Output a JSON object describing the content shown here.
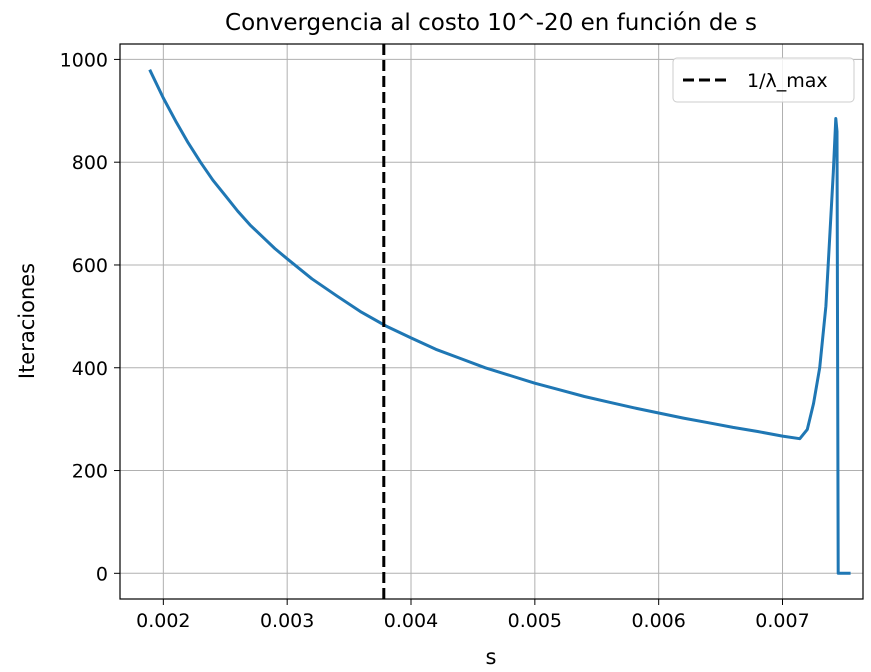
{
  "chart_data": {
    "type": "line",
    "title": "Convergencia al costo 10^-20 en función de s",
    "xlabel": "s",
    "ylabel": "Iteraciones",
    "xlim": [
      0.00165,
      0.00765
    ],
    "ylim": [
      -50,
      1030
    ],
    "xticks": [
      {
        "value": 0.002,
        "label": "0.002"
      },
      {
        "value": 0.003,
        "label": "0.003"
      },
      {
        "value": 0.004,
        "label": "0.004"
      },
      {
        "value": 0.005,
        "label": "0.005"
      },
      {
        "value": 0.006,
        "label": "0.006"
      },
      {
        "value": 0.007,
        "label": "0.007"
      }
    ],
    "yticks": [
      {
        "value": 0,
        "label": "0"
      },
      {
        "value": 200,
        "label": "200"
      },
      {
        "value": 400,
        "label": "400"
      },
      {
        "value": 600,
        "label": "600"
      },
      {
        "value": 800,
        "label": "800"
      },
      {
        "value": 1000,
        "label": "1000"
      }
    ],
    "grid": true,
    "series": [
      {
        "color": "#1f77b4",
        "style": "solid",
        "x": [
          0.00189,
          0.002,
          0.0021,
          0.0022,
          0.0023,
          0.0024,
          0.0025,
          0.0026,
          0.0027,
          0.0028,
          0.0029,
          0.003,
          0.0032,
          0.0034,
          0.0036,
          0.0038,
          0.004,
          0.0042,
          0.0044,
          0.0046,
          0.0048,
          0.005,
          0.0052,
          0.0054,
          0.0056,
          0.0058,
          0.006,
          0.0062,
          0.0064,
          0.0066,
          0.0068,
          0.007,
          0.00714,
          0.0072,
          0.00725,
          0.0073,
          0.00735,
          0.00738,
          0.00741,
          0.00743,
          0.00744,
          0.00745,
          0.00747,
          0.0075,
          0.00755
        ],
        "y": [
          980,
          925,
          880,
          838,
          800,
          765,
          735,
          705,
          678,
          655,
          632,
          612,
          573,
          540,
          508,
          481,
          458,
          436,
          418,
          400,
          385,
          370,
          357,
          344,
          333,
          322,
          312,
          302,
          293,
          284,
          276,
          267,
          262,
          280,
          330,
          400,
          520,
          650,
          780,
          885,
          860,
          0,
          0,
          0,
          0
        ]
      },
      {
        "name": "1/λ_max",
        "color": "#000000",
        "style": "dashed",
        "x": [
          0.00378,
          0.00378
        ],
        "y": [
          -50,
          1030
        ]
      }
    ],
    "legend": {
      "placement": "top-right",
      "entries": [
        "1/λ_max"
      ]
    }
  }
}
